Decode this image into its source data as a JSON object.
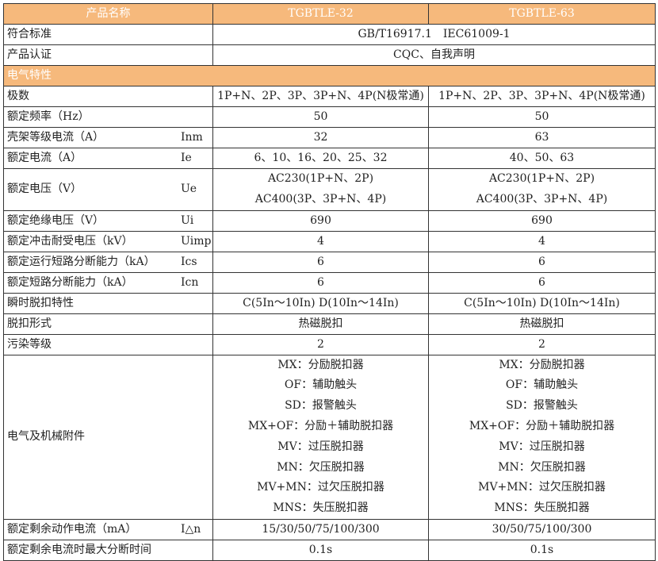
{
  "header": {
    "col0": "产品名称",
    "col1": "TGBTLE-32",
    "col2": "TGBTLE-63"
  },
  "accent_color": "#F6B97C",
  "rows": [
    {
      "label": "符合标准",
      "sym": "",
      "span": [
        "GB/T16917.1　IEC61009-1"
      ]
    },
    {
      "label": "产品认证",
      "sym": "",
      "span": [
        "CQC、自我声明"
      ]
    },
    {
      "section": "电气特性"
    },
    {
      "label": "极数",
      "sym": "",
      "a": [
        "1P+N、2P、3P、3P+N、4P(N极常通)"
      ],
      "b": [
        "1P+N、2P、3P、3P+N、4P(N极常通)"
      ]
    },
    {
      "label": "额定频率（Hz）",
      "sym": "",
      "a": [
        "50"
      ],
      "b": [
        "50"
      ]
    },
    {
      "label": "壳架等级电流（A）",
      "sym": "Inm",
      "a": [
        "32"
      ],
      "b": [
        "63"
      ]
    },
    {
      "label": "额定电流（A）",
      "sym": "Ie",
      "a": [
        "6、10、16、20、25、32"
      ],
      "b": [
        "40、50、63"
      ]
    },
    {
      "label": "额定电压（V）",
      "sym": "Ue",
      "a": [
        "AC230(1P+N、2P)",
        "AC400(3P、3P+N、4P)"
      ],
      "b": [
        "AC230(1P+N、2P)",
        "AC400(3P、3P+N、4P)"
      ]
    },
    {
      "label": "额定绝缘电压（V）",
      "sym": "Ui",
      "a": [
        "690"
      ],
      "b": [
        "690"
      ]
    },
    {
      "label": "额定冲击耐受电压（kV）",
      "sym": "Uimp",
      "a": [
        "4"
      ],
      "b": [
        "4"
      ]
    },
    {
      "label": "额定运行短路分断能力（kA）",
      "sym": "Ics",
      "a": [
        "6"
      ],
      "b": [
        "6"
      ]
    },
    {
      "label": "额定短路分断能力（kA）",
      "sym": "Icn",
      "a": [
        "6"
      ],
      "b": [
        "6"
      ]
    },
    {
      "label": "瞬时脱扣特性",
      "sym": "",
      "a": [
        "C(5In～10In) D(10In～14In)"
      ],
      "b": [
        "C(5In～10In) D(10In～14In)"
      ]
    },
    {
      "label": "脱扣形式",
      "sym": "",
      "a": [
        "热磁脱扣"
      ],
      "b": [
        "热磁脱扣"
      ]
    },
    {
      "label": "污染等级",
      "sym": "",
      "a": [
        "2"
      ],
      "b": [
        "2"
      ]
    },
    {
      "label": "电气及机械附件",
      "sym": "",
      "a": [
        "MX：分励脱扣器",
        "OF：辅助触头",
        "SD：报警触头",
        "MX+OF：分励＋辅助脱扣器",
        "MV：过压脱扣器",
        "MN：欠压脱扣器",
        "MV+MN：过欠压脱扣器",
        "MNS：失压脱扣器"
      ],
      "b": [
        "MX：分励脱扣器",
        "OF：辅助触头",
        "SD：报警触头",
        "MX+OF：分励＋辅助脱扣器",
        "MV：过压脱扣器",
        "MN：欠压脱扣器",
        "MV+MN：过欠压脱扣器",
        "MNS：失压脱扣器"
      ]
    },
    {
      "label": "额定剩余动作电流（mA）",
      "sym": "I△n",
      "a": [
        "15/30/50/75/100/300"
      ],
      "b": [
        "30/50/75/100/300"
      ]
    },
    {
      "label": "额定剩余电流时最大分断时间",
      "sym": "",
      "a": [
        "0.1s"
      ],
      "b": [
        "0.1s"
      ]
    }
  ]
}
